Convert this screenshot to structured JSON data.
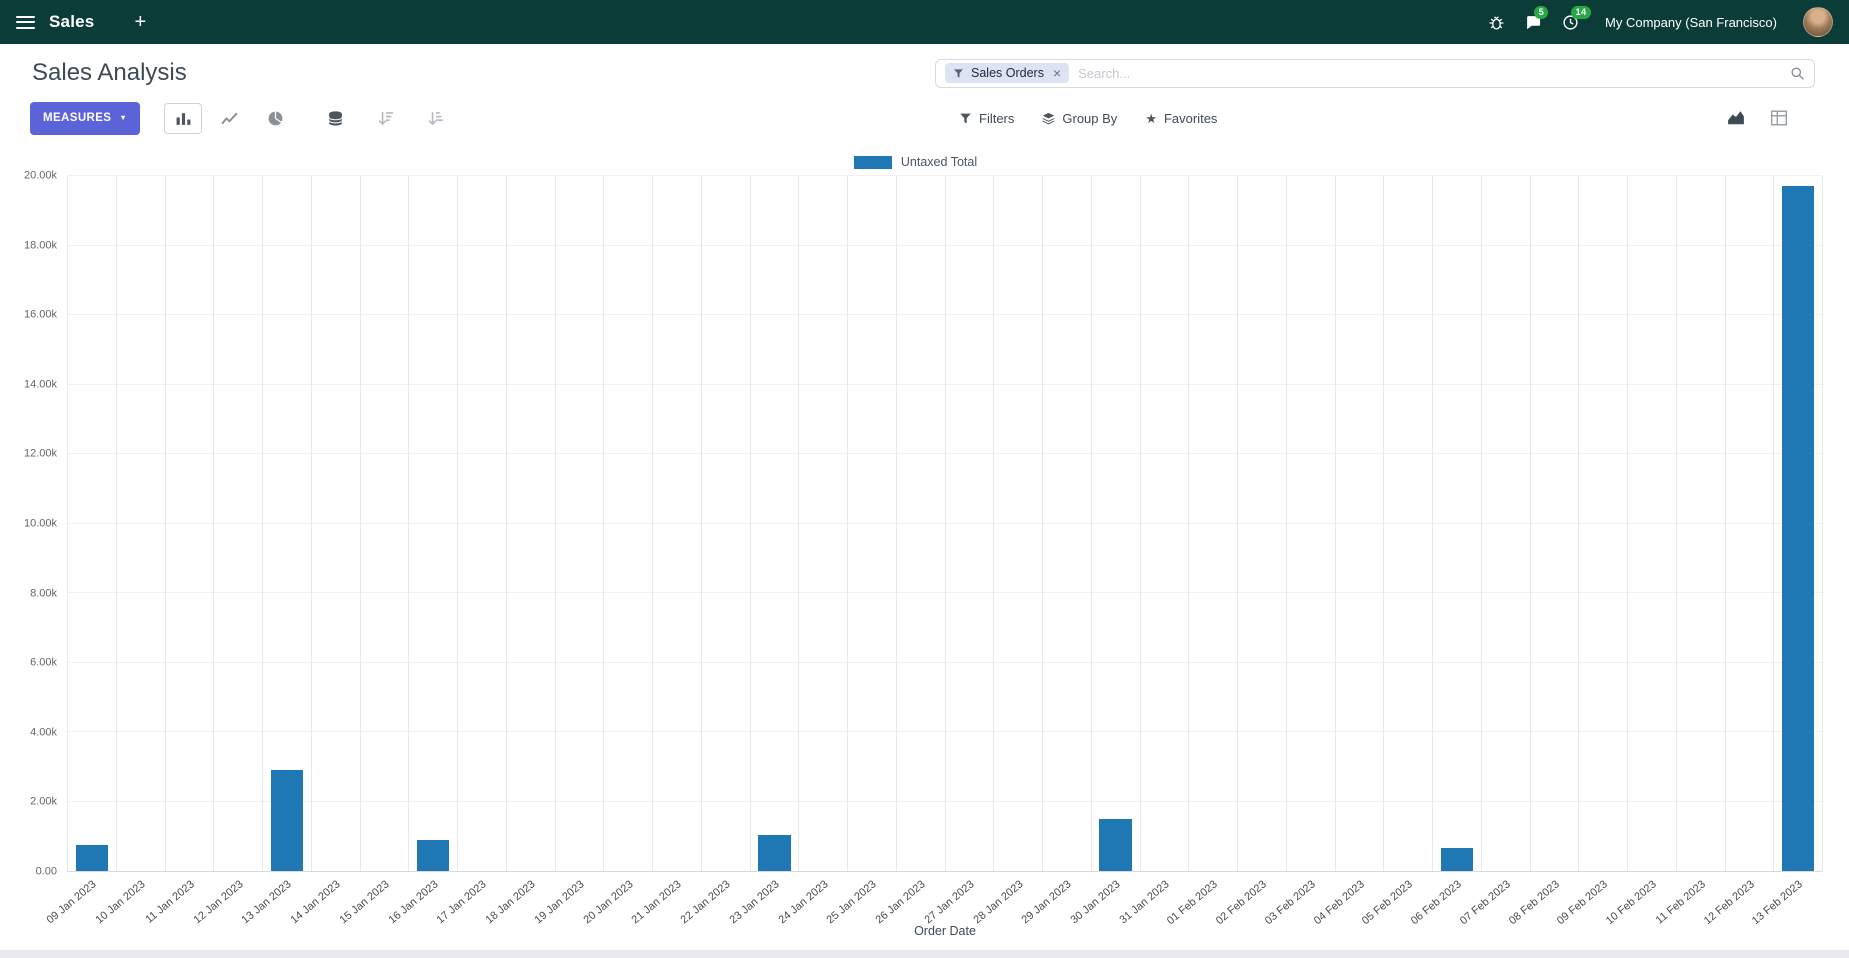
{
  "colors": {
    "topbar_bg": "#0b3c37",
    "primary_button": "#5a63d8",
    "bar": "#1f77b4",
    "badge": "#28a745",
    "facet_bg": "#dee3f3"
  },
  "icons": {
    "plus": "+",
    "star": "★",
    "caret_down": "▼",
    "close": "×"
  },
  "topbar": {
    "app_name": "Sales",
    "company": "My Company (San Francisco)",
    "messages_badge": "5",
    "activities_badge": "14"
  },
  "control_panel": {
    "title": "Sales Analysis",
    "measures_label": "MEASURES",
    "filters_label": "Filters",
    "group_by_label": "Group By",
    "favorites_label": "Favorites",
    "search": {
      "facet_label": "Sales Orders",
      "placeholder": "Search..."
    }
  },
  "chart_data": {
    "type": "bar",
    "title": "",
    "legend": "Untaxed Total",
    "legend_position": "top",
    "xlabel": "Order Date",
    "ylabel": "",
    "ylim": [
      0,
      20000
    ],
    "grid": "vertical-only",
    "y_ticks": [
      "0.00",
      "2.00k",
      "4.00k",
      "6.00k",
      "8.00k",
      "10.00k",
      "12.00k",
      "14.00k",
      "16.00k",
      "18.00k",
      "20.00k"
    ],
    "categories": [
      "09 Jan 2023",
      "10 Jan 2023",
      "11 Jan 2023",
      "12 Jan 2023",
      "13 Jan 2023",
      "14 Jan 2023",
      "15 Jan 2023",
      "16 Jan 2023",
      "17 Jan 2023",
      "18 Jan 2023",
      "19 Jan 2023",
      "20 Jan 2023",
      "21 Jan 2023",
      "22 Jan 2023",
      "23 Jan 2023",
      "24 Jan 2023",
      "25 Jan 2023",
      "26 Jan 2023",
      "27 Jan 2023",
      "28 Jan 2023",
      "29 Jan 2023",
      "30 Jan 2023",
      "31 Jan 2023",
      "01 Feb 2023",
      "02 Feb 2023",
      "03 Feb 2023",
      "04 Feb 2023",
      "05 Feb 2023",
      "06 Feb 2023",
      "07 Feb 2023",
      "08 Feb 2023",
      "09 Feb 2023",
      "10 Feb 2023",
      "11 Feb 2023",
      "12 Feb 2023",
      "13 Feb 2023"
    ],
    "values": [
      750,
      null,
      null,
      null,
      2900,
      null,
      null,
      900,
      null,
      null,
      null,
      null,
      null,
      null,
      1050,
      null,
      null,
      null,
      null,
      null,
      null,
      1500,
      null,
      null,
      null,
      null,
      null,
      null,
      650,
      null,
      null,
      null,
      null,
      null,
      null,
      19700
    ]
  }
}
